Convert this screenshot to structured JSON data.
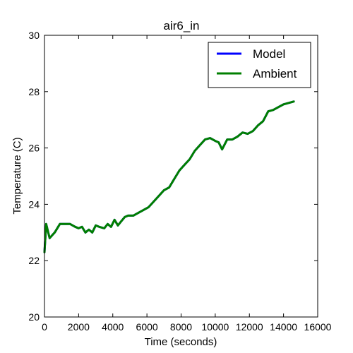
{
  "chart_data": {
    "type": "line",
    "title": "air6_in",
    "xlabel": "Time (seconds)",
    "ylabel": "Temperature (C)",
    "xlim": [
      0,
      16000
    ],
    "ylim": [
      20,
      30
    ],
    "xticks": [
      0,
      2000,
      4000,
      6000,
      8000,
      10000,
      12000,
      14000,
      16000
    ],
    "yticks": [
      20,
      22,
      24,
      26,
      28,
      30
    ],
    "grid": false,
    "legend_position": "top-right",
    "series": [
      {
        "name": "Model",
        "color": "#0000ff",
        "x": [
          0,
          100,
          300,
          600,
          900,
          1200,
          1500,
          1800,
          2000,
          2200,
          2400,
          2600,
          2800,
          3000,
          3200,
          3500,
          3700,
          3900,
          4100,
          4300,
          4500,
          4700,
          4900,
          5200,
          5500,
          5800,
          6100,
          6400,
          6700,
          7000,
          7300,
          7600,
          7900,
          8200,
          8500,
          8800,
          9100,
          9400,
          9700,
          10000,
          10200,
          10400,
          10700,
          11000,
          11300,
          11600,
          11900,
          12200,
          12500,
          12800,
          13100,
          13400,
          13700,
          14000,
          14300,
          14600
        ],
        "values": [
          22.3,
          23.3,
          22.8,
          23.0,
          23.3,
          23.3,
          23.3,
          23.2,
          23.15,
          23.2,
          23.0,
          23.1,
          23.0,
          23.25,
          23.2,
          23.15,
          23.3,
          23.2,
          23.45,
          23.25,
          23.4,
          23.55,
          23.6,
          23.6,
          23.7,
          23.8,
          23.9,
          24.1,
          24.3,
          24.5,
          24.6,
          24.9,
          25.2,
          25.4,
          25.6,
          25.9,
          26.1,
          26.3,
          26.35,
          26.25,
          26.2,
          25.95,
          26.3,
          26.3,
          26.4,
          26.55,
          26.5,
          26.6,
          26.8,
          26.95,
          27.3,
          27.35,
          27.45,
          27.55,
          27.6,
          27.65
        ]
      },
      {
        "name": "Ambient",
        "color": "#007f00",
        "x": [
          0,
          100,
          300,
          600,
          900,
          1200,
          1500,
          1800,
          2000,
          2200,
          2400,
          2600,
          2800,
          3000,
          3200,
          3500,
          3700,
          3900,
          4100,
          4300,
          4500,
          4700,
          4900,
          5200,
          5500,
          5800,
          6100,
          6400,
          6700,
          7000,
          7300,
          7600,
          7900,
          8200,
          8500,
          8800,
          9100,
          9400,
          9700,
          10000,
          10200,
          10400,
          10700,
          11000,
          11300,
          11600,
          11900,
          12200,
          12500,
          12800,
          13100,
          13400,
          13700,
          14000,
          14300,
          14600
        ],
        "values": [
          22.3,
          23.3,
          22.8,
          23.0,
          23.3,
          23.3,
          23.3,
          23.2,
          23.15,
          23.2,
          23.0,
          23.1,
          23.0,
          23.25,
          23.2,
          23.15,
          23.3,
          23.2,
          23.45,
          23.25,
          23.4,
          23.55,
          23.6,
          23.6,
          23.7,
          23.8,
          23.9,
          24.1,
          24.3,
          24.5,
          24.6,
          24.9,
          25.2,
          25.4,
          25.6,
          25.9,
          26.1,
          26.3,
          26.35,
          26.25,
          26.2,
          25.95,
          26.3,
          26.3,
          26.4,
          26.55,
          26.5,
          26.6,
          26.8,
          26.95,
          27.3,
          27.35,
          27.45,
          27.55,
          27.6,
          27.65
        ]
      }
    ]
  }
}
